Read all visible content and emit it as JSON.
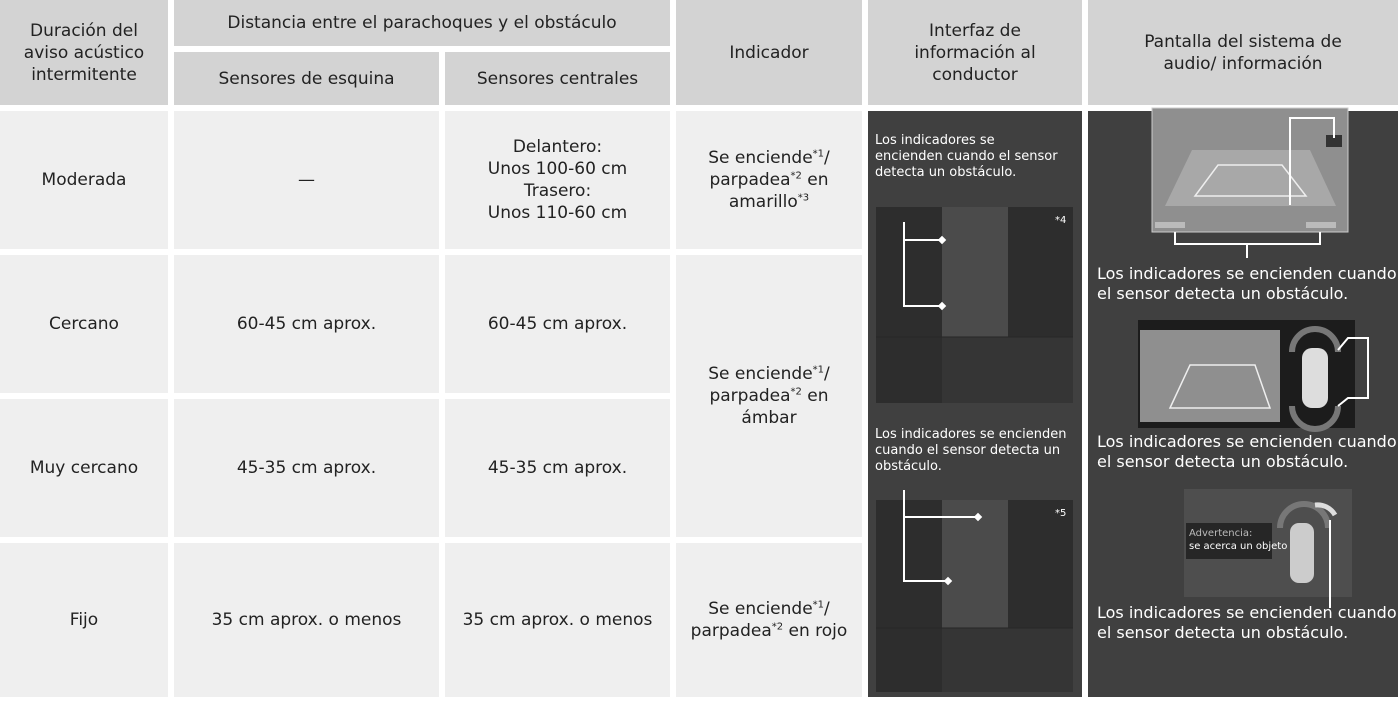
{
  "header": {
    "duration": "Duración del aviso acústico intermitente",
    "distance": "Distancia entre el parachoques y el obstáculo",
    "corner": "Sensores de esquina",
    "center": "Sensores centrales",
    "indicator": "Indicador",
    "driver_interface": "Interfaz de información al conductor",
    "audio_display": "Pantalla del sistema de audio/ información"
  },
  "rows": [
    {
      "duration": "Moderada",
      "corner": "—",
      "center": [
        "Delantero:",
        "Unos 100-60 cm",
        "Trasero:",
        "Unos 110-60 cm"
      ]
    },
    {
      "duration": "Cercano",
      "corner": "60-45 cm aprox.",
      "center": "60-45 cm aprox."
    },
    {
      "duration": "Muy cercano",
      "corner": "45-35 cm aprox.",
      "center": "45-35 cm aprox."
    },
    {
      "duration": "Fijo",
      "corner": "35 cm aprox. o menos",
      "center": "35 cm aprox. o menos"
    }
  ],
  "indicators": [
    [
      "Se enciende",
      "*1",
      "/ parpadea",
      "*2",
      " en amarillo",
      "*3"
    ],
    [
      "Se enciende",
      "*1",
      "/ parpadea",
      "*2",
      " en ámbar"
    ],
    [
      "Se enciende",
      "*1",
      "/ parpadea",
      "*2",
      " en rojo"
    ]
  ],
  "driver_interface": {
    "captions": [
      "Los indicadores se encienden cuando el sensor detecta un obstáculo.",
      "Los indicadores se encienden cuando el sensor detecta un obstáculo."
    ],
    "notes": [
      "*4",
      "*5"
    ]
  },
  "audio_display": {
    "captions": [
      "Los indicadores se encienden cuando el sensor detecta un obstáculo.",
      "Los indicadores se encienden cuando el sensor detecta un obstáculo.",
      "Los indicadores se encienden cuando el sensor detecta un obstáculo."
    ],
    "warning": [
      "Advertencia:",
      "se acerca un objeto"
    ]
  }
}
